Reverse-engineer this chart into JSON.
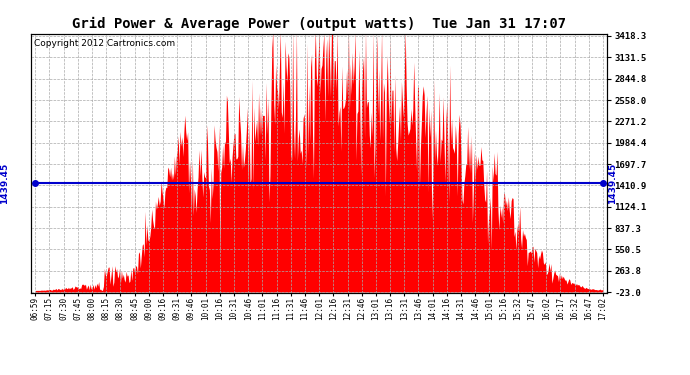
{
  "title": "Grid Power & Average Power (output watts)  Tue Jan 31 17:07",
  "copyright": "Copyright 2012 Cartronics.com",
  "average_value": 1439.45,
  "y_min": -23.0,
  "y_max": 3418.3,
  "right_yticks": [
    3418.3,
    3131.5,
    2844.8,
    2558.0,
    2271.2,
    1984.4,
    1697.7,
    1410.9,
    1124.1,
    837.3,
    550.5,
    263.8,
    -23.0
  ],
  "bar_color": "#FF0000",
  "avg_line_color": "#0000CC",
  "background_color": "#FFFFFF",
  "grid_color": "#AAAAAA",
  "title_fontsize": 10,
  "copyright_fontsize": 6.5,
  "x_labels": [
    "06:59",
    "07:15",
    "07:30",
    "07:45",
    "08:00",
    "08:15",
    "08:30",
    "08:45",
    "09:00",
    "09:16",
    "09:31",
    "09:46",
    "10:01",
    "10:16",
    "10:31",
    "10:46",
    "11:01",
    "11:16",
    "11:31",
    "11:46",
    "12:01",
    "12:16",
    "12:31",
    "12:46",
    "13:01",
    "13:16",
    "13:31",
    "13:46",
    "14:01",
    "14:16",
    "14:31",
    "14:46",
    "15:01",
    "15:16",
    "15:32",
    "15:47",
    "16:02",
    "16:17",
    "16:32",
    "16:47",
    "17:02"
  ]
}
